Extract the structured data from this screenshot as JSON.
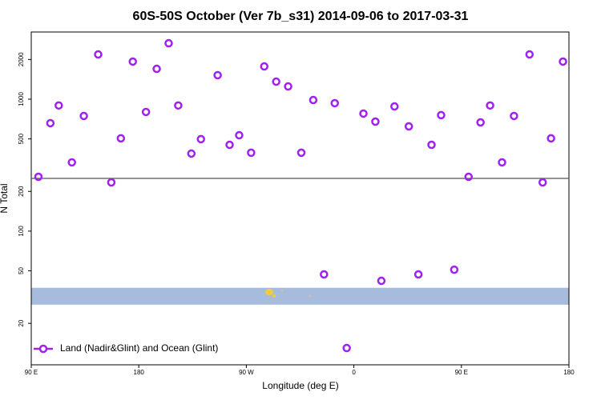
{
  "chart_data": {
    "type": "scatter",
    "title": "60S-50S October (Ver 7b_s31)   2014-09-06 to 2017-03-31",
    "x_label": "Longitude (deg E)",
    "y_label": "N Total",
    "log_y": true,
    "grid": false,
    "legend_position": "lower left",
    "xlim": [
      90,
      540
    ],
    "xticks": [
      {
        "value": 90,
        "label": "90 E"
      },
      {
        "value": 180,
        "label": "180"
      },
      {
        "value": 270,
        "label": "90 W"
      },
      {
        "value": 360,
        "label": "0"
      },
      {
        "value": 450,
        "label": "90 E"
      },
      {
        "value": 540,
        "label": "180"
      }
    ],
    "ylim": [
      9.7,
      3230
    ],
    "yticks": [
      20,
      50,
      100,
      200,
      500,
      1000,
      2000
    ],
    "reference_line": 251,
    "land_band": [
      27.7,
      37.2
    ],
    "series": [
      {
        "name": "Land (Nadir&Glint) and Ocean (Glint)",
        "color": "#a020f0",
        "x": [
          96,
          106,
          113,
          124,
          134,
          146,
          157,
          165,
          175,
          186,
          195,
          205,
          213,
          224,
          232,
          246,
          256,
          264,
          274,
          285,
          295,
          305,
          316,
          326,
          335,
          344,
          354,
          368,
          378,
          383,
          394,
          406,
          414,
          425,
          433,
          444,
          456,
          466,
          474,
          484,
          494,
          507,
          518,
          525,
          535
        ],
        "values": [
          258,
          658,
          896,
          332,
          746,
          2183,
          234,
          505,
          1928,
          800,
          1698,
          2655,
          896,
          387,
          498,
          1520,
          451,
          533,
          393,
          1771,
          1358,
          1249,
          393,
          985,
          47,
          933,
          13,
          778,
          676,
          42,
          881,
          622,
          47,
          451,
          757,
          51,
          258,
          667,
          896,
          332,
          746,
          2183,
          234,
          505,
          1928
        ]
      }
    ]
  }
}
